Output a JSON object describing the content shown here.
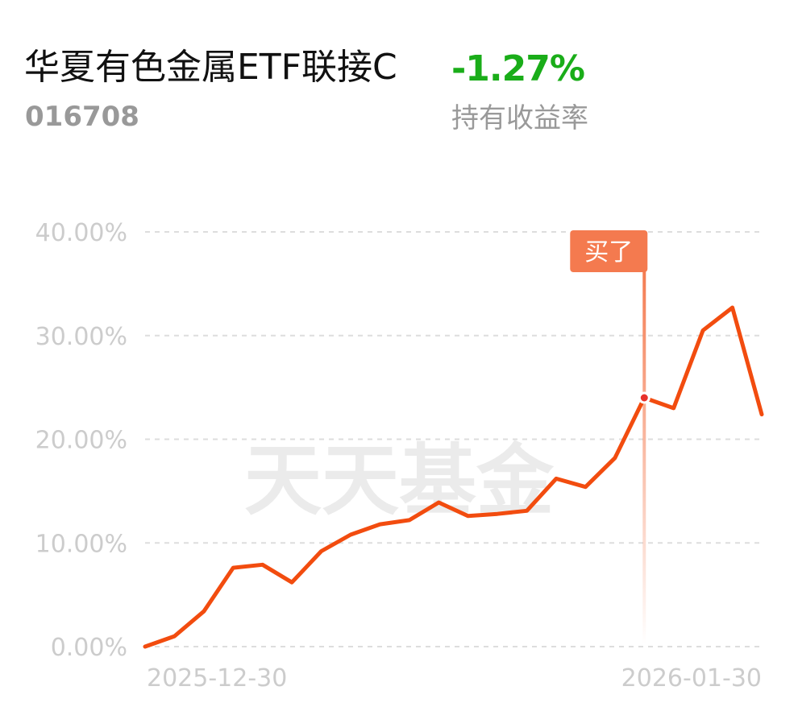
{
  "header": {
    "fund_name": "华夏有色金属ETF联接C",
    "fund_code": "016708",
    "return_value": "-1.27%",
    "return_label": "持有收益率",
    "return_color": "#1aad19"
  },
  "watermark": "天天基金",
  "marker": {
    "label": "买了",
    "color": "#f47a4f",
    "point_index": 17
  },
  "chart_data": {
    "type": "line",
    "title": "",
    "xlabel": "",
    "ylabel": "",
    "x_tick_labels": [
      "2025-12-30",
      "2026-01-30"
    ],
    "y_ticks": [
      {
        "value": 0,
        "label": "0.00%"
      },
      {
        "value": 10,
        "label": "10.00%"
      },
      {
        "value": 20,
        "label": "20.00%"
      },
      {
        "value": 30,
        "label": "30.00%"
      },
      {
        "value": 40,
        "label": "40.00%"
      }
    ],
    "ylim": [
      0,
      40
    ],
    "grid": true,
    "line_color": "#f24c0f",
    "series": [
      {
        "values": [
          0.0,
          1.0,
          3.4,
          7.6,
          7.9,
          6.2,
          9.2,
          10.8,
          11.8,
          12.2,
          13.9,
          12.6,
          12.8,
          13.1,
          16.2,
          15.4,
          18.2,
          24.0,
          23.0,
          30.5,
          32.7,
          22.4
        ]
      }
    ]
  }
}
